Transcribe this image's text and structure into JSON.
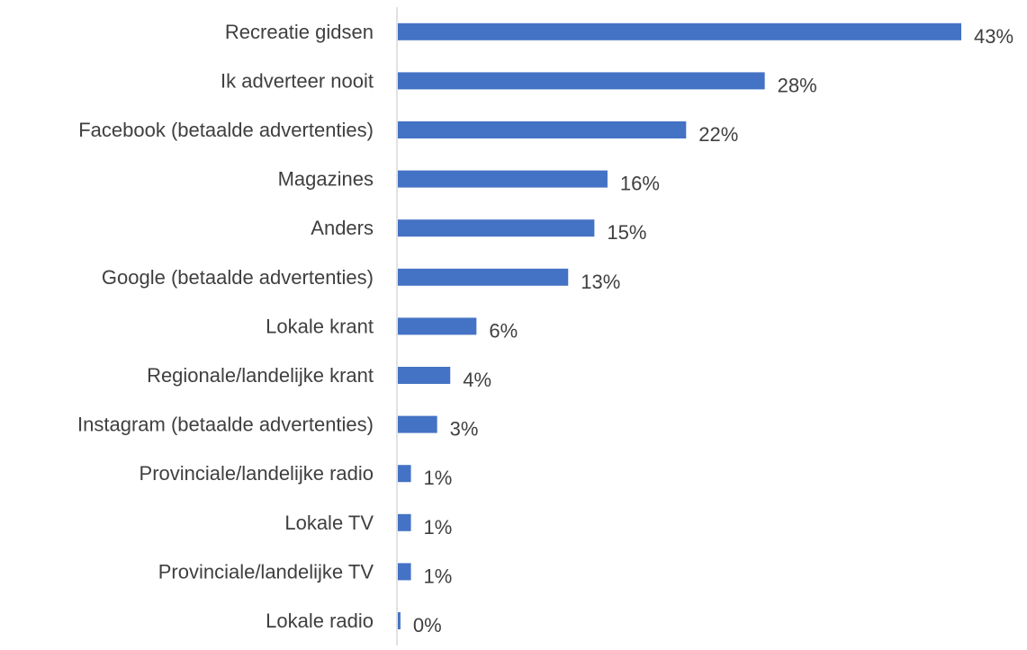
{
  "chart_data": {
    "type": "bar",
    "orientation": "horizontal",
    "categories": [
      "Recreatie gidsen",
      "Ik adverteer nooit",
      "Facebook (betaalde advertenties)",
      "Magazines",
      "Anders",
      "Google (betaalde advertenties)",
      "Lokale krant",
      "Regionale/landelijke krant",
      "Instagram (betaalde advertenties)",
      "Provinciale/landelijke radio",
      "Lokale TV",
      "Provinciale/landelijke TV",
      "Lokale radio"
    ],
    "values": [
      43,
      28,
      22,
      16,
      15,
      13,
      6,
      4,
      3,
      1,
      1,
      1,
      0.2
    ],
    "value_labels": [
      "43%",
      "28%",
      "22%",
      "16%",
      "15%",
      "13%",
      "6%",
      "4%",
      "3%",
      "1%",
      "1%",
      "1%",
      "0%"
    ],
    "unit": "%",
    "xlim": [
      0,
      43
    ],
    "grid": false,
    "legend": "none",
    "colors": {
      "bar": "#4472c4",
      "axis": "#d9d9d9",
      "text": "#3f3f3f"
    }
  }
}
